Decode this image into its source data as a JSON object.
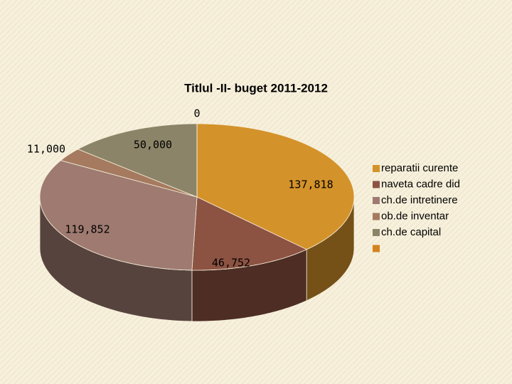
{
  "chart_data": {
    "type": "pie3d",
    "title": "Titlul -II- buget 2011-2012",
    "categories": [
      "reparatii curente",
      "naveta cadre did",
      "ch.de intretinere",
      "ob.de inventar",
      "ch.de capital",
      null
    ],
    "values": [
      137818,
      46752,
      119852,
      11000,
      50000,
      0
    ],
    "value_labels": [
      "137,818",
      "46,752",
      "119,852",
      "11,000",
      "50,000",
      "0"
    ],
    "colors": [
      "#d4922a",
      "#8c5242",
      "#9e7a70",
      "#a57a5e",
      "#8c8468",
      "#d4821e"
    ],
    "legend": "right"
  }
}
